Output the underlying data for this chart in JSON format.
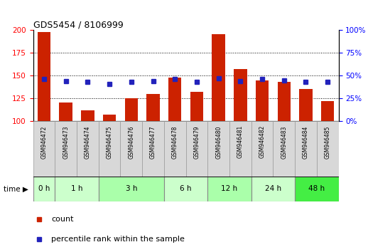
{
  "title": "GDS5454 / 8106999",
  "samples": [
    "GSM946472",
    "GSM946473",
    "GSM946474",
    "GSM946475",
    "GSM946476",
    "GSM946477",
    "GSM946478",
    "GSM946479",
    "GSM946480",
    "GSM946481",
    "GSM946482",
    "GSM946483",
    "GSM946484",
    "GSM946485"
  ],
  "bar_values": [
    198,
    120,
    112,
    107,
    125,
    130,
    148,
    132,
    196,
    157,
    145,
    143,
    135,
    122
  ],
  "percentile_values": [
    46,
    44,
    43,
    41,
    43,
    44,
    46,
    43,
    47,
    44,
    46,
    45,
    43,
    43
  ],
  "bar_color": "#cc2200",
  "percentile_color": "#2222bb",
  "ylim_left": [
    100,
    200
  ],
  "ylim_right": [
    0,
    100
  ],
  "yticks_left": [
    100,
    125,
    150,
    175,
    200
  ],
  "yticks_right": [
    0,
    25,
    50,
    75,
    100
  ],
  "hlines": [
    125,
    150,
    175
  ],
  "time_groups": [
    {
      "label": "0 h",
      "indices": [
        0
      ],
      "color": "#ccffcc"
    },
    {
      "label": "1 h",
      "indices": [
        1,
        2
      ],
      "color": "#ccffcc"
    },
    {
      "label": "3 h",
      "indices": [
        3,
        4,
        5
      ],
      "color": "#aaffaa"
    },
    {
      "label": "6 h",
      "indices": [
        6,
        7
      ],
      "color": "#ccffcc"
    },
    {
      "label": "12 h",
      "indices": [
        8,
        9
      ],
      "color": "#aaffaa"
    },
    {
      "label": "24 h",
      "indices": [
        10,
        11
      ],
      "color": "#ccffcc"
    },
    {
      "label": "48 h",
      "indices": [
        12,
        13
      ],
      "color": "#44ee44"
    }
  ],
  "legend_count_label": "count",
  "legend_pct_label": "percentile rank within the sample",
  "fig_width": 5.18,
  "fig_height": 3.54,
  "dpi": 100,
  "label_box_color": "#cccccc",
  "bar_baseline": 100
}
